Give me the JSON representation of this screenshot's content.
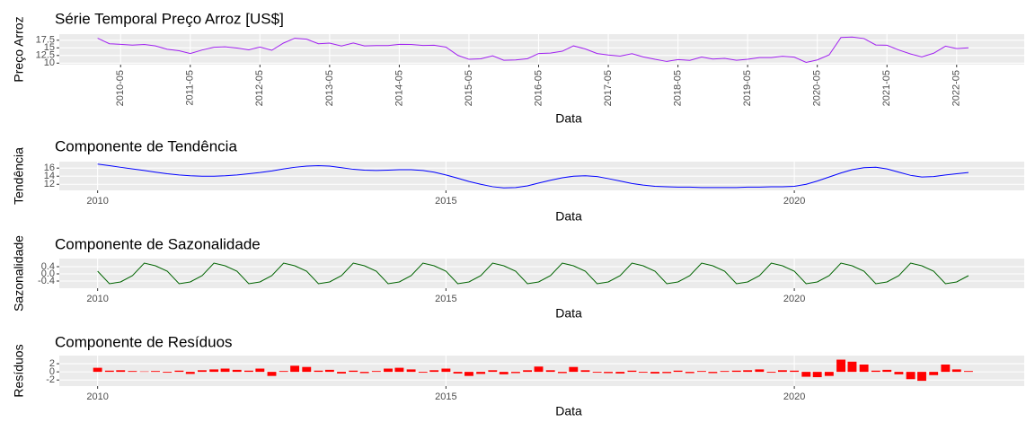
{
  "chart_data": [
    {
      "type": "line",
      "title": "Série Temporal Preço Arroz [US$]",
      "xlabel": "Data",
      "ylabel": "Preço Arroz",
      "color": "#a020f0",
      "grid": true,
      "x_tick_labels_rotated": true,
      "xlim": [
        2009.45,
        2023.3
      ],
      "ylim": [
        9.5,
        19.5
      ],
      "xticks": [
        {
          "value": 2010.33,
          "label": "2010-05"
        },
        {
          "value": 2011.33,
          "label": "2011-05"
        },
        {
          "value": 2012.33,
          "label": "2012-05"
        },
        {
          "value": 2013.33,
          "label": "2013-05"
        },
        {
          "value": 2014.33,
          "label": "2014-05"
        },
        {
          "value": 2015.33,
          "label": "2015-05"
        },
        {
          "value": 2016.33,
          "label": "2016-05"
        },
        {
          "value": 2017.33,
          "label": "2017-05"
        },
        {
          "value": 2018.33,
          "label": "2018-05"
        },
        {
          "value": 2019.33,
          "label": "2019-05"
        },
        {
          "value": 2020.33,
          "label": "2020-05"
        },
        {
          "value": 2021.33,
          "label": "2021-05"
        },
        {
          "value": 2022.33,
          "label": "2022-05"
        }
      ],
      "yticks": [
        10,
        12.5,
        15,
        17.5
      ],
      "x": [
        2010,
        2010.17,
        2010.33,
        2010.5,
        2010.67,
        2010.83,
        2011,
        2011.17,
        2011.33,
        2011.5,
        2011.67,
        2011.83,
        2012,
        2012.17,
        2012.33,
        2012.5,
        2012.67,
        2012.83,
        2013,
        2013.17,
        2013.33,
        2013.5,
        2013.67,
        2013.83,
        2014,
        2014.17,
        2014.33,
        2014.5,
        2014.67,
        2014.83,
        2015,
        2015.17,
        2015.33,
        2015.5,
        2015.67,
        2015.83,
        2016,
        2016.17,
        2016.33,
        2016.5,
        2016.67,
        2016.83,
        2017,
        2017.17,
        2017.33,
        2017.5,
        2017.67,
        2017.83,
        2018,
        2018.17,
        2018.33,
        2018.5,
        2018.67,
        2018.83,
        2019,
        2019.17,
        2019.33,
        2019.5,
        2019.67,
        2019.83,
        2020,
        2020.17,
        2020.33,
        2020.5,
        2020.67,
        2020.83,
        2021,
        2021.17,
        2021.33,
        2021.5,
        2021.67,
        2021.83,
        2022,
        2022.17,
        2022.33,
        2022.5
      ],
      "values": [
        18.15,
        16.35,
        16.15,
        15.9,
        16.1,
        15.65,
        14.55,
        14.05,
        13.15,
        14.3,
        15.2,
        15.35,
        14.95,
        14.35,
        15.25,
        14.2,
        16.6,
        18.15,
        17.85,
        16.35,
        16.55,
        15.6,
        16.6,
        15.65,
        15.75,
        15.75,
        16.15,
        16.1,
        15.8,
        15.85,
        15.25,
        12.55,
        11.25,
        11.4,
        12.4,
        10.95,
        11.05,
        11.45,
        13.15,
        13.3,
        13.9,
        15.65,
        14.65,
        13.15,
        12.65,
        12.3,
        13.1,
        12.05,
        11.25,
        10.55,
        11.15,
        10.9,
        12.0,
        11.35,
        11.55,
        10.95,
        11.25,
        11.8,
        11.8,
        12.25,
        11.95,
        10.25,
        11.05,
        12.7,
        18.4,
        18.55,
        18.05,
        15.95,
        15.85,
        14.3,
        13.0,
        12.05,
        13.25,
        15.55,
        14.75,
        15.0
      ]
    },
    {
      "type": "line",
      "title": "Componente de Tendência",
      "xlabel": "Data",
      "ylabel": "Tendência",
      "color": "#0000ff",
      "grid": true,
      "xlim": [
        2009.45,
        2023.3
      ],
      "ylim": [
        10.5,
        17.6
      ],
      "xticks": [
        2010,
        2015,
        2020
      ],
      "yticks": [
        12,
        14,
        16
      ],
      "x": [
        2010,
        2010.17,
        2010.33,
        2010.5,
        2010.67,
        2010.83,
        2011,
        2011.17,
        2011.33,
        2011.5,
        2011.67,
        2011.83,
        2012,
        2012.17,
        2012.33,
        2012.5,
        2012.67,
        2012.83,
        2013,
        2013.17,
        2013.33,
        2013.5,
        2013.67,
        2013.83,
        2014,
        2014.17,
        2014.33,
        2014.5,
        2014.67,
        2014.83,
        2015,
        2015.17,
        2015.33,
        2015.5,
        2015.67,
        2015.83,
        2016,
        2016.17,
        2016.33,
        2016.5,
        2016.67,
        2016.83,
        2017,
        2017.17,
        2017.33,
        2017.5,
        2017.67,
        2017.83,
        2018,
        2018.17,
        2018.33,
        2018.5,
        2018.67,
        2018.83,
        2019,
        2019.17,
        2019.33,
        2019.5,
        2019.67,
        2019.83,
        2020,
        2020.17,
        2020.33,
        2020.5,
        2020.67,
        2020.83,
        2021,
        2021.17,
        2021.33,
        2021.5,
        2021.67,
        2021.83,
        2022,
        2022.17,
        2022.33,
        2022.5
      ],
      "values": [
        17.0,
        16.6,
        16.2,
        15.8,
        15.4,
        15.0,
        14.6,
        14.3,
        14.1,
        14.0,
        14.0,
        14.1,
        14.3,
        14.6,
        14.9,
        15.3,
        15.8,
        16.2,
        16.5,
        16.6,
        16.5,
        16.1,
        15.7,
        15.5,
        15.4,
        15.5,
        15.6,
        15.6,
        15.4,
        15.0,
        14.3,
        13.5,
        12.7,
        12.0,
        11.4,
        11.1,
        11.2,
        11.6,
        12.3,
        13.0,
        13.6,
        14.0,
        14.1,
        13.9,
        13.4,
        12.8,
        12.2,
        11.8,
        11.5,
        11.4,
        11.3,
        11.3,
        11.2,
        11.2,
        11.2,
        11.2,
        11.3,
        11.3,
        11.4,
        11.4,
        11.5,
        12.0,
        12.8,
        13.8,
        14.8,
        15.6,
        16.1,
        16.2,
        15.8,
        15.0,
        14.2,
        13.8,
        13.9,
        14.3,
        14.6,
        14.9
      ]
    },
    {
      "type": "line",
      "title": "Componente de Sazonalidade",
      "xlabel": "Data",
      "ylabel": "Sazonalidade",
      "color": "#006400",
      "grid": true,
      "xlim": [
        2009.45,
        2023.3
      ],
      "ylim": [
        -0.8,
        0.85
      ],
      "xticks": [
        2010,
        2015,
        2020
      ],
      "yticks": [
        -0.4,
        {
          "value": 0,
          "label": "0.0"
        },
        0.4
      ],
      "x": [
        2010,
        2010.17,
        2010.33,
        2010.5,
        2010.67,
        2010.83,
        2011,
        2011.17,
        2011.33,
        2011.5,
        2011.67,
        2011.83,
        2012,
        2012.17,
        2012.33,
        2012.5,
        2012.67,
        2012.83,
        2013,
        2013.17,
        2013.33,
        2013.5,
        2013.67,
        2013.83,
        2014,
        2014.17,
        2014.33,
        2014.5,
        2014.67,
        2014.83,
        2015,
        2015.17,
        2015.33,
        2015.5,
        2015.67,
        2015.83,
        2016,
        2016.17,
        2016.33,
        2016.5,
        2016.67,
        2016.83,
        2017,
        2017.17,
        2017.33,
        2017.5,
        2017.67,
        2017.83,
        2018,
        2018.17,
        2018.33,
        2018.5,
        2018.67,
        2018.83,
        2019,
        2019.17,
        2019.33,
        2019.5,
        2019.67,
        2019.83,
        2020,
        2020.17,
        2020.33,
        2020.5,
        2020.67,
        2020.83,
        2021,
        2021.17,
        2021.33,
        2021.5,
        2021.67,
        2021.83,
        2022,
        2022.17,
        2022.33,
        2022.5
      ],
      "values": [
        0.15,
        -0.55,
        -0.45,
        -0.1,
        0.6,
        0.45,
        0.15,
        -0.55,
        -0.45,
        -0.1,
        0.6,
        0.45,
        0.15,
        -0.55,
        -0.45,
        -0.1,
        0.6,
        0.45,
        0.15,
        -0.55,
        -0.45,
        -0.1,
        0.6,
        0.45,
        0.15,
        -0.55,
        -0.45,
        -0.1,
        0.6,
        0.45,
        0.15,
        -0.55,
        -0.45,
        -0.1,
        0.6,
        0.45,
        0.15,
        -0.55,
        -0.45,
        -0.1,
        0.6,
        0.45,
        0.15,
        -0.55,
        -0.45,
        -0.1,
        0.6,
        0.45,
        0.15,
        -0.55,
        -0.45,
        -0.1,
        0.6,
        0.45,
        0.15,
        -0.55,
        -0.45,
        -0.1,
        0.6,
        0.45,
        0.15,
        -0.55,
        -0.45,
        -0.1,
        0.6,
        0.45,
        0.15,
        -0.55,
        -0.45,
        -0.1,
        0.6,
        0.45,
        0.15,
        -0.55,
        -0.45,
        -0.1
      ]
    },
    {
      "type": "bar",
      "title": "Componente de Resíduos",
      "xlabel": "Data",
      "ylabel": "Resíduos",
      "color": "#ff0000",
      "grid": true,
      "xlim": [
        2009.45,
        2023.3
      ],
      "ylim": [
        -3.5,
        4
      ],
      "xticks": [
        2010,
        2015,
        2020
      ],
      "yticks": [
        -2,
        0,
        2
      ],
      "x": [
        2010,
        2010.17,
        2010.33,
        2010.5,
        2010.67,
        2010.83,
        2011,
        2011.17,
        2011.33,
        2011.5,
        2011.67,
        2011.83,
        2012,
        2012.17,
        2012.33,
        2012.5,
        2012.67,
        2012.83,
        2013,
        2013.17,
        2013.33,
        2013.5,
        2013.67,
        2013.83,
        2014,
        2014.17,
        2014.33,
        2014.5,
        2014.67,
        2014.83,
        2015,
        2015.17,
        2015.33,
        2015.5,
        2015.67,
        2015.83,
        2016,
        2016.17,
        2016.33,
        2016.5,
        2016.67,
        2016.83,
        2017,
        2017.17,
        2017.33,
        2017.5,
        2017.67,
        2017.83,
        2018,
        2018.17,
        2018.33,
        2018.5,
        2018.67,
        2018.83,
        2019,
        2019.17,
        2019.33,
        2019.5,
        2019.67,
        2019.83,
        2020,
        2020.17,
        2020.33,
        2020.5,
        2020.67,
        2020.83,
        2021,
        2021.17,
        2021.33,
        2021.5,
        2021.67,
        2021.83,
        2022,
        2022.17,
        2022.33,
        2022.5
      ],
      "values": [
        1.0,
        0.3,
        0.4,
        0.2,
        0.1,
        0.2,
        -0.2,
        0.3,
        -0.5,
        0.4,
        0.6,
        0.8,
        0.5,
        0.3,
        0.8,
        -1.0,
        0.2,
        1.5,
        1.2,
        0.3,
        0.5,
        -0.4,
        0.3,
        -0.3,
        0.2,
        0.8,
        1.0,
        0.6,
        -0.2,
        0.4,
        0.8,
        -0.4,
        -1.0,
        -0.5,
        0.4,
        -0.6,
        -0.3,
        0.4,
        1.3,
        0.4,
        -0.3,
        1.2,
        0.4,
        -0.2,
        -0.3,
        -0.4,
        0.3,
        -0.2,
        -0.4,
        -0.3,
        0.3,
        -0.3,
        0.2,
        -0.3,
        0.2,
        0.3,
        0.4,
        0.6,
        -0.2,
        0.4,
        0.3,
        -1.2,
        -1.3,
        -1.0,
        3.0,
        2.5,
        1.8,
        0.3,
        0.5,
        -0.6,
        -1.8,
        -2.2,
        -0.8,
        1.8,
        0.6,
        0.2
      ]
    }
  ]
}
